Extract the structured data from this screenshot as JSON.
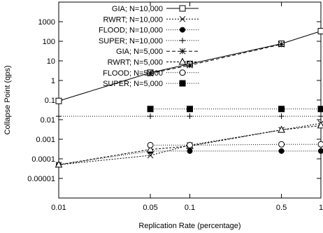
{
  "chart_data": {
    "type": "line",
    "xlabel": "Replication Rate (percentage)",
    "ylabel": "Collapse Point (qps)",
    "x_scale": "log",
    "y_scale": "log",
    "xlim": [
      0.01,
      1
    ],
    "ylim": [
      1e-06,
      10000
    ],
    "x_ticks": [
      0.01,
      0.05,
      0.1,
      0.5,
      1
    ],
    "x_tick_labels": [
      "0.01",
      "0.05",
      "0.1",
      "0.5",
      "1"
    ],
    "y_ticks": [
      1e-05,
      0.0001,
      0.001,
      0.01,
      0.1,
      1,
      10,
      100,
      1000
    ],
    "y_tick_labels": [
      "0.00001",
      "0.0001",
      "0.001",
      "0.01",
      "0.1",
      "1",
      "10",
      "100",
      "1000"
    ],
    "grid": false,
    "legend_position": "top-left",
    "series": [
      {
        "name": "GIA; N=10,000",
        "marker": "open-square",
        "dash": "",
        "color": "#000000",
        "x": [
          0.01,
          0.05,
          0.1,
          0.5,
          1
        ],
        "y": [
          0.09,
          2.5,
          7,
          75,
          330
        ]
      },
      {
        "name": "RWRT; N=10,000",
        "marker": "x",
        "dash": "2,2",
        "color": "#000000",
        "x": [
          0.01,
          0.05,
          0.1,
          0.5,
          1
        ],
        "y": [
          5e-05,
          0.00015,
          0.0005,
          0.003,
          0.0065
        ]
      },
      {
        "name": "FLOOD; N=10,000",
        "marker": "filled-circle",
        "dash": "1,2",
        "color": "#000000",
        "x": [
          0.01,
          0.05,
          0.1,
          0.5,
          1
        ],
        "y": [
          5e-05,
          0.00025,
          0.00025,
          0.00025,
          0.00025
        ]
      },
      {
        "name": "SUPER; N=10,000",
        "marker": "plus",
        "dash": "1,2",
        "color": "#000000",
        "x": [
          0.01,
          0.05,
          0.1,
          0.5,
          1
        ],
        "y": [
          0.015,
          0.015,
          0.015,
          0.015,
          0.015
        ]
      },
      {
        "name": "GIA; N=5,000",
        "marker": "star",
        "dash": "5,3",
        "color": "#000000",
        "x": [
          0.05,
          0.1,
          0.5
        ],
        "y": [
          2.3,
          6,
          70
        ]
      },
      {
        "name": "RWRT; N=5,000",
        "marker": "open-triangle",
        "dash": "3,2",
        "color": "#000000",
        "x": [
          0.01,
          0.05,
          0.1,
          0.5,
          1
        ],
        "y": [
          5e-05,
          0.0003,
          0.00045,
          0.003,
          0.005
        ]
      },
      {
        "name": "FLOOD; N=5,000",
        "marker": "open-circle",
        "dash": "1,2",
        "color": "#000000",
        "x": [
          0.05,
          0.1,
          0.5,
          1
        ],
        "y": [
          0.0005,
          0.0005,
          0.00055,
          0.00055
        ]
      },
      {
        "name": "SUPER; N=5,000",
        "marker": "filled-square",
        "dash": "1,2",
        "color": "#000000",
        "x": [
          0.05,
          0.1,
          0.5,
          1
        ],
        "y": [
          0.035,
          0.035,
          0.035,
          0.035
        ]
      }
    ]
  }
}
